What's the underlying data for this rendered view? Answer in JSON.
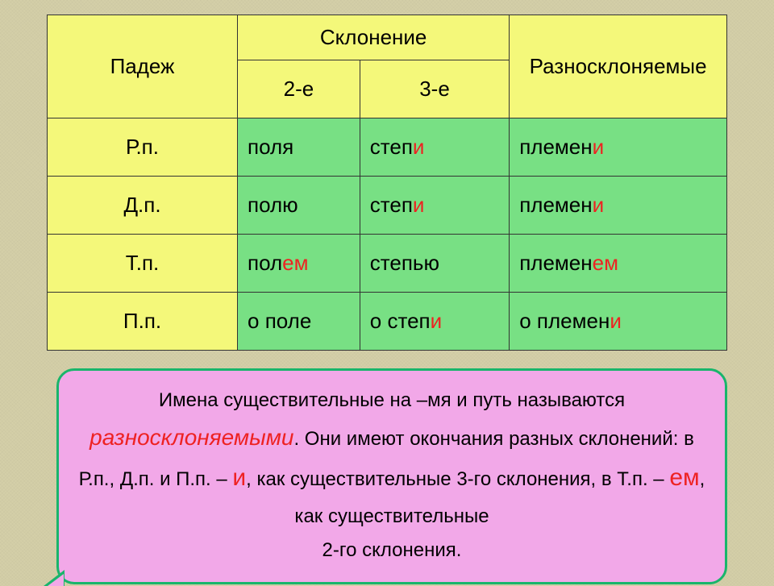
{
  "palette": {
    "background": "#d4cfa8",
    "header_bg": "#f4f87a",
    "cell_bg": "#78e084",
    "border": "#333333",
    "text": "#000000",
    "highlight_red": "#ee2222",
    "note_bg": "#f2a8e8",
    "note_border": "#19b56b"
  },
  "typography": {
    "table_fontsize_pt": 20,
    "note_fontsize_pt": 18,
    "font_family": "Arial"
  },
  "table": {
    "type": "table",
    "col_widths_pct": [
      28,
      18,
      22,
      32
    ],
    "header": {
      "case": "Падеж",
      "declension": "Склонение",
      "hetero": "Разносклоняемые",
      "d2": "2-е",
      "d3": "3-е"
    },
    "rows": [
      {
        "case": "Р.п.",
        "c1_stem": "пол",
        "c1_end": "я",
        "c1_red": false,
        "c2_stem": "степ",
        "c2_end": "и",
        "c2_red": true,
        "c3_stem": "племен",
        "c3_end": "и",
        "c3_red": true
      },
      {
        "case": "Д.п.",
        "c1_stem": "пол",
        "c1_end": "ю",
        "c1_red": false,
        "c2_stem": "степ",
        "c2_end": "и",
        "c2_red": true,
        "c3_stem": "племен",
        "c3_end": "и",
        "c3_red": true
      },
      {
        "case": "Т.п.",
        "c1_stem": "пол",
        "c1_end": "ем",
        "c1_red": true,
        "c2_stem": "степ",
        "c2_end": "ью",
        "c2_red": false,
        "c3_stem": "племен",
        "c3_end": "ем",
        "c3_red": true
      },
      {
        "case": "П.п.",
        "c1_stem": "о пол",
        "c1_end": "е",
        "c1_red": false,
        "c2_stem": "о степ",
        "c2_end": "и",
        "c2_red": true,
        "c3_stem": "о племен",
        "c3_end": "и",
        "c3_red": true
      }
    ]
  },
  "note": {
    "t1": "Имена существительные на –мя и путь называются ",
    "r1": "разносклоняемыми",
    "t2": ". Они имеют окончания разных склонений: в Р.п., Д.п. и П.п. – ",
    "r2": "и",
    "t3": ", как существительные 3-го склонения, в Т.п. – ",
    "r3": "ем",
    "t4": ", как существительные ",
    "t5": "2-го склонения."
  }
}
